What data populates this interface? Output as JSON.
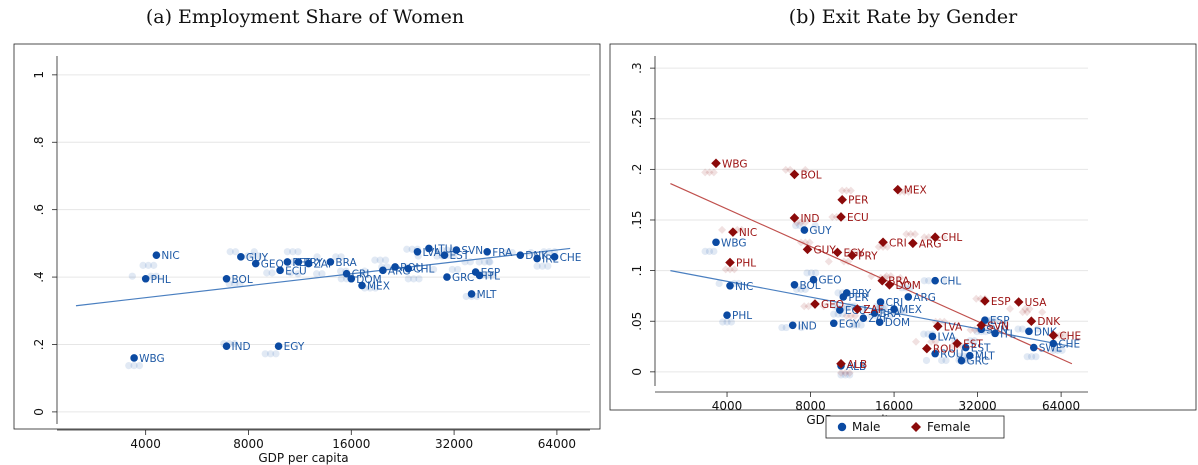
{
  "titles": {
    "a": "(a) Employment Share of Women",
    "b": "(b) Exit Rate by Gender"
  },
  "colors": {
    "male": "#0b4aa2",
    "female": "#8b0a0a",
    "male_fit": "#4a7fc0",
    "female_fit": "#c0504d"
  },
  "chart_data": [
    {
      "type": "scatter",
      "title": "(a) Employment Share of Women",
      "xlabel": "GDP per capita",
      "ylabel": "",
      "x_scale": "log",
      "xlim": [
        2200,
        80000
      ],
      "ylim": [
        -0.03,
        1.05
      ],
      "xticks": [
        4000,
        8000,
        16000,
        32000,
        64000
      ],
      "xtick_labels": [
        "4000",
        "8000",
        "16000",
        "32000",
        "64000"
      ],
      "yticks": [
        0,
        0.2,
        0.4,
        0.6,
        0.8,
        1
      ],
      "ytick_labels": [
        "0",
        ".2",
        ".4",
        ".6",
        ".8",
        "1"
      ],
      "grid": "horizontal",
      "fit_line": {
        "x": [
          2500,
          70000
        ],
        "y": [
          0.315,
          0.485
        ]
      },
      "series": [
        {
          "points": [
            {
              "label": "NIC",
              "x": 4300,
              "y": 0.465
            },
            {
              "label": "PHL",
              "x": 4000,
              "y": 0.395
            },
            {
              "label": "WBG",
              "x": 3700,
              "y": 0.16
            },
            {
              "label": "GUY",
              "x": 7600,
              "y": 0.46
            },
            {
              "label": "BOL",
              "x": 6900,
              "y": 0.395
            },
            {
              "label": "GEO",
              "x": 8400,
              "y": 0.44
            },
            {
              "label": "ECU",
              "x": 9900,
              "y": 0.42
            },
            {
              "label": "PER",
              "x": 10400,
              "y": 0.445
            },
            {
              "label": "PRY",
              "x": 11200,
              "y": 0.445
            },
            {
              "label": "ZAF",
              "x": 12000,
              "y": 0.44
            },
            {
              "label": "IND",
              "x": 6900,
              "y": 0.195
            },
            {
              "label": "EGY",
              "x": 9800,
              "y": 0.195
            },
            {
              "label": "BRA",
              "x": 13900,
              "y": 0.445
            },
            {
              "label": "CRI",
              "x": 15500,
              "y": 0.41
            },
            {
              "label": "DOM",
              "x": 16000,
              "y": 0.395
            },
            {
              "label": "MEX",
              "x": 17200,
              "y": 0.375
            },
            {
              "label": "ARG",
              "x": 19800,
              "y": 0.42
            },
            {
              "label": "ROU",
              "x": 21500,
              "y": 0.43
            },
            {
              "label": "CHL",
              "x": 23500,
              "y": 0.425
            },
            {
              "label": "LVA",
              "x": 25000,
              "y": 0.475
            },
            {
              "label": "LTU",
              "x": 27000,
              "y": 0.485
            },
            {
              "label": "EST",
              "x": 30000,
              "y": 0.465
            },
            {
              "label": "SVN",
              "x": 32500,
              "y": 0.48
            },
            {
              "label": "GRC",
              "x": 30500,
              "y": 0.4
            },
            {
              "label": "MLT",
              "x": 36000,
              "y": 0.35
            },
            {
              "label": "ESP",
              "x": 37000,
              "y": 0.415
            },
            {
              "label": "ITL",
              "x": 38000,
              "y": 0.405
            },
            {
              "label": "FRA",
              "x": 40000,
              "y": 0.475
            },
            {
              "label": "DNK",
              "x": 50000,
              "y": 0.465
            },
            {
              "label": "IRL",
              "x": 56000,
              "y": 0.455
            },
            {
              "label": "CHE",
              "x": 63000,
              "y": 0.46
            }
          ]
        }
      ]
    },
    {
      "type": "scatter",
      "title": "(b) Exit Rate by Gender",
      "xlabel": "GDP per capita",
      "ylabel": "",
      "x_scale": "log",
      "xlim": [
        2200,
        80000
      ],
      "ylim": [
        -0.012,
        0.31
      ],
      "xticks": [
        4000,
        8000,
        16000,
        32000,
        64000
      ],
      "xtick_labels": [
        "4000",
        "8000",
        "16000",
        "32000",
        "64000"
      ],
      "yticks": [
        0,
        0.05,
        0.1,
        0.15,
        0.2,
        0.25,
        0.3
      ],
      "ytick_labels": [
        "0",
        ".05",
        ".1",
        ".15",
        ".2",
        ".25",
        ".3"
      ],
      "grid": "horizontal",
      "legend": {
        "position": "bottom",
        "entries": [
          "Male",
          "Female"
        ]
      },
      "fit_lines": [
        {
          "series": "Male",
          "x": [
            2500,
            70000
          ],
          "y": [
            0.1,
            0.025
          ]
        },
        {
          "series": "Female",
          "x": [
            2500,
            70000
          ],
          "y": [
            0.186,
            0.008
          ]
        }
      ],
      "series": [
        {
          "name": "Male",
          "marker": "circle",
          "points": [
            {
              "label": "WBG",
              "x": 3650,
              "y": 0.128
            },
            {
              "label": "NIC",
              "x": 4100,
              "y": 0.085
            },
            {
              "label": "PHL",
              "x": 4000,
              "y": 0.056
            },
            {
              "label": "GUY",
              "x": 7600,
              "y": 0.14
            },
            {
              "label": "BOL",
              "x": 7000,
              "y": 0.086
            },
            {
              "label": "GEO",
              "x": 8200,
              "y": 0.091
            },
            {
              "label": "IND",
              "x": 6900,
              "y": 0.046
            },
            {
              "label": "EGY",
              "x": 9700,
              "y": 0.048
            },
            {
              "label": "PRY",
              "x": 10800,
              "y": 0.078
            },
            {
              "label": "PER",
              "x": 10500,
              "y": 0.074
            },
            {
              "label": "ECU",
              "x": 10200,
              "y": 0.061
            },
            {
              "label": "ZAF",
              "x": 12400,
              "y": 0.053
            },
            {
              "label": "BRA",
              "x": 13600,
              "y": 0.058
            },
            {
              "label": "CRI",
              "x": 14300,
              "y": 0.069
            },
            {
              "label": "DOM",
              "x": 14200,
              "y": 0.049
            },
            {
              "label": "MEX",
              "x": 16000,
              "y": 0.062
            },
            {
              "label": "ARG",
              "x": 18000,
              "y": 0.074
            },
            {
              "label": "CHL",
              "x": 22500,
              "y": 0.09
            },
            {
              "label": "ALB",
              "x": 10300,
              "y": 0.006
            },
            {
              "label": "LVA",
              "x": 22000,
              "y": 0.035
            },
            {
              "label": "ROU",
              "x": 22500,
              "y": 0.018
            },
            {
              "label": "GRC",
              "x": 28000,
              "y": 0.011
            },
            {
              "label": "MLT",
              "x": 30000,
              "y": 0.016
            },
            {
              "label": "EST",
              "x": 29000,
              "y": 0.024
            },
            {
              "label": "SVN",
              "x": 33000,
              "y": 0.042
            },
            {
              "label": "ITL",
              "x": 37000,
              "y": 0.038
            },
            {
              "label": "ESP",
              "x": 34000,
              "y": 0.051
            },
            {
              "label": "SWE",
              "x": 51000,
              "y": 0.024
            },
            {
              "label": "DNK",
              "x": 49000,
              "y": 0.04
            },
            {
              "label": "CHE",
              "x": 60000,
              "y": 0.028
            }
          ]
        },
        {
          "name": "Female",
          "marker": "diamond",
          "points": [
            {
              "label": "WBG",
              "x": 3650,
              "y": 0.206
            },
            {
              "label": "NIC",
              "x": 4200,
              "y": 0.138
            },
            {
              "label": "PHL",
              "x": 4100,
              "y": 0.108
            },
            {
              "label": "BOL",
              "x": 7000,
              "y": 0.195
            },
            {
              "label": "IND",
              "x": 7000,
              "y": 0.152
            },
            {
              "label": "GUY",
              "x": 7800,
              "y": 0.121
            },
            {
              "label": "GEO",
              "x": 8300,
              "y": 0.067
            },
            {
              "label": "PER",
              "x": 10400,
              "y": 0.17
            },
            {
              "label": "ECU",
              "x": 10300,
              "y": 0.153
            },
            {
              "label": "EGY",
              "x": 10000,
              "y": 0.118
            },
            {
              "label": "PRY",
              "x": 11300,
              "y": 0.115
            },
            {
              "label": "ZAF",
              "x": 11800,
              "y": 0.062
            },
            {
              "label": "BRA",
              "x": 14500,
              "y": 0.09
            },
            {
              "label": "CRI",
              "x": 14600,
              "y": 0.128
            },
            {
              "label": "DOM",
              "x": 15400,
              "y": 0.086
            },
            {
              "label": "MEX",
              "x": 16500,
              "y": 0.18
            },
            {
              "label": "ARG",
              "x": 18700,
              "y": 0.127
            },
            {
              "label": "CHL",
              "x": 22500,
              "y": 0.133
            },
            {
              "label": "ALB",
              "x": 10300,
              "y": 0.008
            },
            {
              "label": "ESP",
              "x": 34000,
              "y": 0.07
            },
            {
              "label": "USA",
              "x": 45000,
              "y": 0.069
            },
            {
              "label": "LVA",
              "x": 23000,
              "y": 0.045
            },
            {
              "label": "SVN",
              "x": 33000,
              "y": 0.046
            },
            {
              "label": "ROU",
              "x": 21000,
              "y": 0.023
            },
            {
              "label": "EST",
              "x": 27000,
              "y": 0.028
            },
            {
              "label": "DNK",
              "x": 50000,
              "y": 0.05
            },
            {
              "label": "CHE",
              "x": 60000,
              "y": 0.036
            }
          ]
        }
      ]
    }
  ]
}
